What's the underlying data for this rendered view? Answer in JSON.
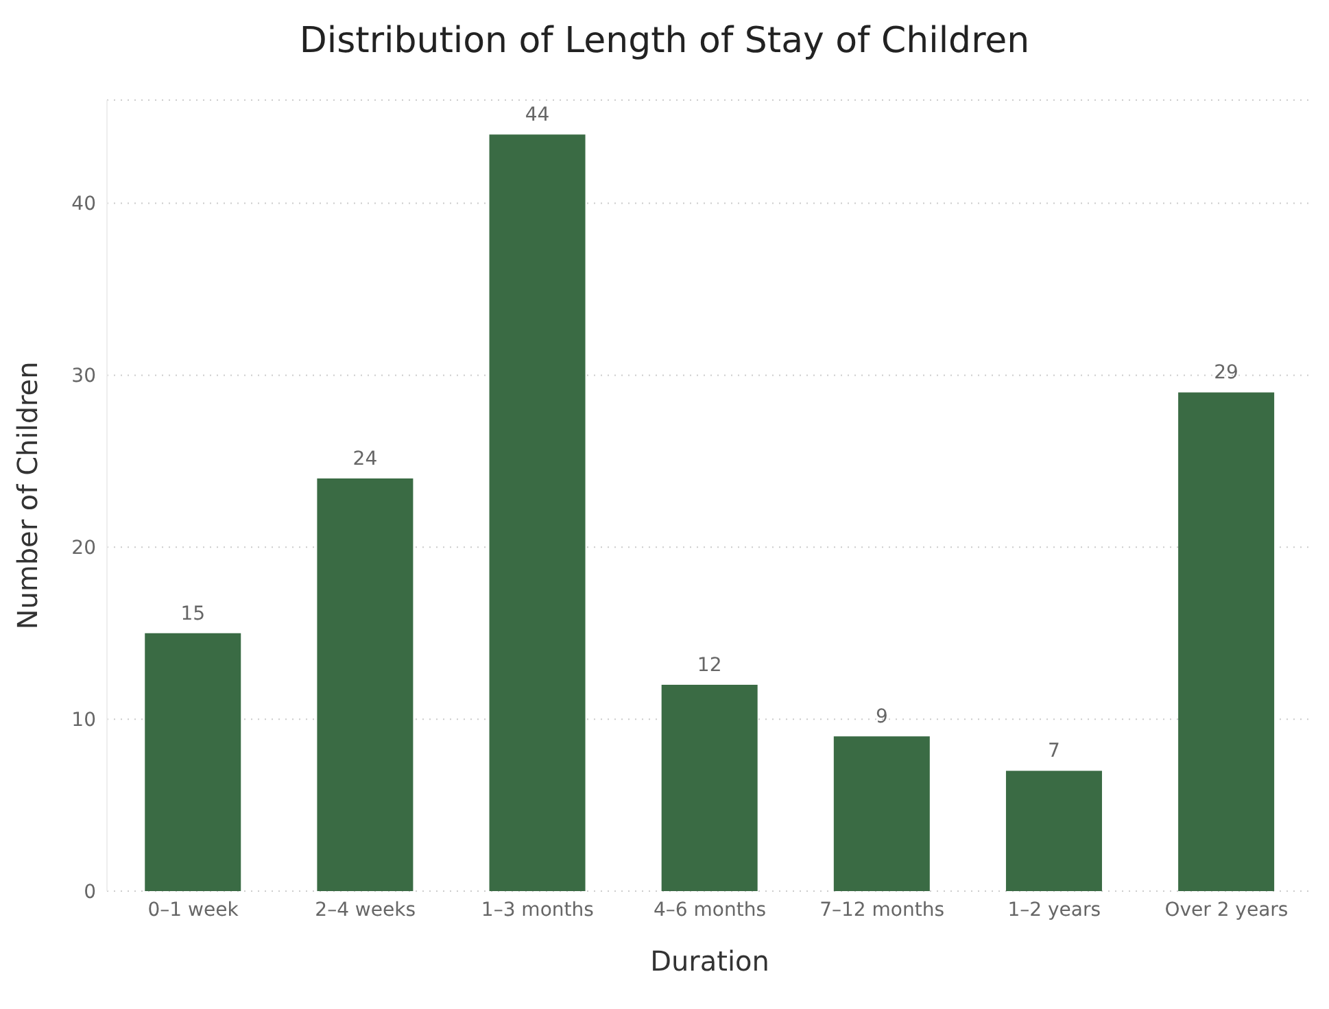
{
  "chart_data": {
    "type": "bar",
    "title": "Distribution of Length of Stay of Children",
    "xlabel": "Duration",
    "ylabel": "Number of Children",
    "categories": [
      "0–1 week",
      "2–4 weeks",
      "1–3 months",
      "4–6 months",
      "7–12 months",
      "1–2 years",
      "Over 2 years"
    ],
    "values": [
      15,
      24,
      44,
      12,
      9,
      7,
      29
    ],
    "color": "#3a6b44",
    "ylim": [
      0,
      46
    ],
    "yticks": [
      0,
      10,
      20,
      30,
      40
    ],
    "grid": "y",
    "data_labels": true
  }
}
